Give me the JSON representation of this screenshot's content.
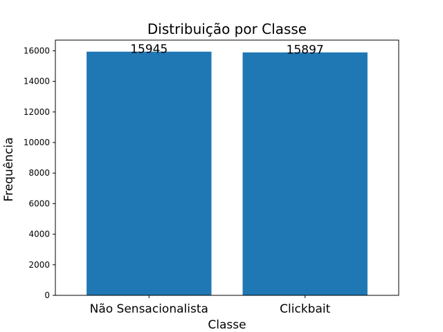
{
  "chart_data": {
    "type": "bar",
    "title": "Distribuição por Classe",
    "xlabel": "Classe",
    "ylabel": "Frequência",
    "categories": [
      "Não Sensacionalista",
      "Clickbait"
    ],
    "values": [
      15945,
      15897
    ],
    "data_labels": [
      "15945",
      "15897"
    ],
    "ylim": [
      0,
      16700
    ],
    "yticks": [
      0,
      2000,
      4000,
      6000,
      8000,
      10000,
      12000,
      14000,
      16000
    ],
    "ytick_labels": [
      "0",
      "2000",
      "4000",
      "6000",
      "8000",
      "10000",
      "12000",
      "14000",
      "16000"
    ],
    "bar_color": "#1f77b4",
    "grid": false,
    "legend": null
  }
}
